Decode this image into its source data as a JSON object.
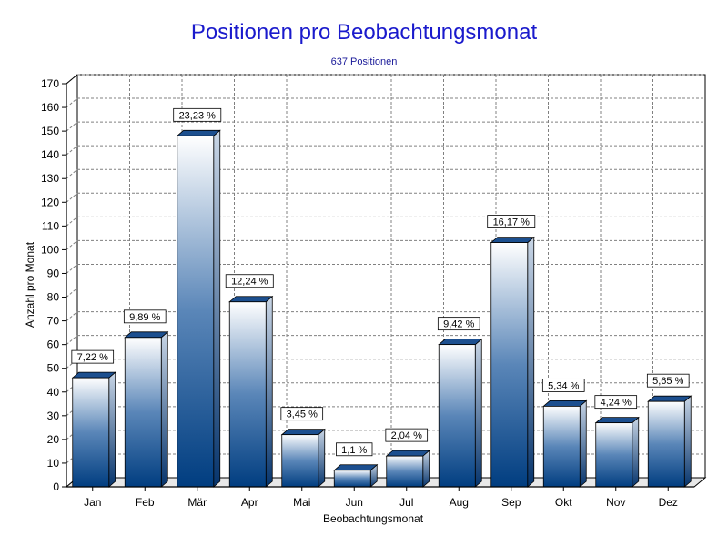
{
  "chart_data": {
    "type": "bar",
    "title": "Positionen pro Beobachtungsmonat",
    "subtitle": "637 Positionen",
    "xlabel": "Beobachtungsmonat",
    "ylabel": "Anzahl pro Monat",
    "categories": [
      "Jan",
      "Feb",
      "Mär",
      "Apr",
      "Mai",
      "Jun",
      "Jul",
      "Aug",
      "Sep",
      "Okt",
      "Nov",
      "Dez"
    ],
    "values": [
      46,
      63,
      148,
      78,
      22,
      7,
      13,
      60,
      103,
      34,
      27,
      36
    ],
    "data_labels": [
      "7,22 %",
      "9,89 %",
      "23,23 %",
      "12,24 %",
      "3,45 %",
      "1,1 %",
      "2,04 %",
      "9,42 %",
      "16,17 %",
      "5,34 %",
      "4,24 %",
      "5,65 %"
    ],
    "ylim": [
      0,
      170
    ],
    "yticks": [
      0,
      10,
      20,
      30,
      40,
      50,
      60,
      70,
      80,
      90,
      100,
      110,
      120,
      130,
      140,
      150,
      160,
      170
    ],
    "grid": true,
    "colors": {
      "bar_top": "#ffffff",
      "bar_bottom": "#003d80",
      "bar_side": "#0b3a78",
      "grid": "#808080",
      "title": "#1a1acc"
    }
  }
}
